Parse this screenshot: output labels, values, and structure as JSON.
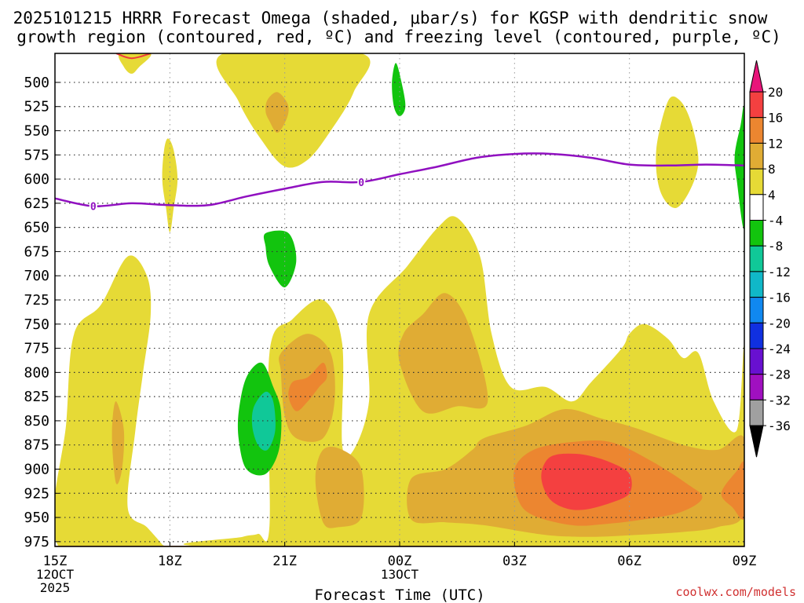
{
  "chart_data": {
    "type": "heatmap",
    "title_line1": "2025101215 HRRR Forecast Omega (shaded, μbar/s) for KGSP with dendritic snow",
    "title_line2": "growth region (contoured, red, ºC) and freezing level (contoured, purple, ºC)",
    "xlabel": "Forecast Time (UTC)",
    "watermark": "coolwx.com/models",
    "x_range_hours": [
      0,
      18
    ],
    "y_range_hpa": [
      470,
      980
    ],
    "x_ticks": [
      {
        "hour": 0,
        "label": "15Z"
      },
      {
        "hour": 3,
        "label": "18Z"
      },
      {
        "hour": 6,
        "label": "21Z"
      },
      {
        "hour": 9,
        "label": "00Z"
      },
      {
        "hour": 12,
        "label": "03Z"
      },
      {
        "hour": 15,
        "label": "06Z"
      },
      {
        "hour": 18,
        "label": "09Z"
      }
    ],
    "date_labels": [
      {
        "hour": 0,
        "lines": [
          "12OCT",
          "2025"
        ]
      },
      {
        "hour": 9,
        "lines": [
          "13OCT"
        ]
      }
    ],
    "y_ticks": [
      500,
      525,
      550,
      575,
      600,
      625,
      650,
      675,
      700,
      725,
      750,
      775,
      800,
      825,
      850,
      875,
      900,
      925,
      950,
      975
    ],
    "colorbar": {
      "labels": [
        "20",
        "16",
        "12",
        "8",
        "4",
        "-4",
        "-8",
        "-12",
        "-16",
        "-20",
        "-24",
        "-28",
        "-32",
        "-36"
      ],
      "bands": [
        {
          "from": 20,
          "to": 16,
          "color": "#f44040"
        },
        {
          "from": 16,
          "to": 12,
          "color": "#ec8630"
        },
        {
          "from": 12,
          "to": 8,
          "color": "#e0ac34"
        },
        {
          "from": 8,
          "to": 4,
          "color": "#e6da36"
        },
        {
          "from": 4,
          "to": -4,
          "color": "#ffffff"
        },
        {
          "from": -4,
          "to": -8,
          "color": "#12c40e"
        },
        {
          "from": -8,
          "to": -12,
          "color": "#10c898"
        },
        {
          "from": -12,
          "to": -16,
          "color": "#10b8c8"
        },
        {
          "from": -16,
          "to": -20,
          "color": "#1088f0"
        },
        {
          "from": -20,
          "to": -24,
          "color": "#1030e0"
        },
        {
          "from": -24,
          "to": -28,
          "color": "#6810d0"
        },
        {
          "from": -28,
          "to": -32,
          "color": "#a010c0"
        },
        {
          "from": -32,
          "to": -36,
          "color": "#a0a0a0"
        }
      ],
      "top_arrow_color": "#e8157a",
      "bottom_arrow_color": "#000000"
    },
    "freezing_level": {
      "label": "0",
      "color": "#9010c0",
      "points": [
        [
          0,
          620
        ],
        [
          1,
          628
        ],
        [
          2,
          625
        ],
        [
          3,
          627
        ],
        [
          4,
          627
        ],
        [
          5,
          618
        ],
        [
          6,
          610
        ],
        [
          7,
          603
        ],
        [
          8,
          603
        ],
        [
          9,
          595
        ],
        [
          10,
          587
        ],
        [
          11,
          578
        ],
        [
          12,
          574
        ],
        [
          13,
          574
        ],
        [
          14,
          578
        ],
        [
          15,
          585
        ],
        [
          16,
          586
        ],
        [
          17,
          585
        ],
        [
          18,
          586
        ]
      ],
      "label_points": [
        [
          1,
          628
        ],
        [
          8,
          603
        ]
      ]
    },
    "dendritic_contour": {
      "color": "#f03c3c",
      "points": [
        [
          1.6,
          470
        ],
        [
          2.0,
          475
        ],
        [
          2.5,
          470
        ]
      ]
    },
    "ground": {
      "pressure_hpa": 980,
      "color": "#b0602a"
    },
    "omega_regions": [
      {
        "name": "upper-left-small",
        "value": 5,
        "points": [
          [
            1.7,
            470
          ],
          [
            2.5,
            470
          ],
          [
            2.2,
            484
          ],
          [
            2.0,
            491
          ],
          [
            1.8,
            484
          ]
        ]
      },
      {
        "name": "upper-center-plume",
        "value": 5,
        "points": [
          [
            4.4,
            470
          ],
          [
            8.0,
            470
          ],
          [
            7.8,
            510
          ],
          [
            7.2,
            550
          ],
          [
            6.6,
            580
          ],
          [
            6.0,
            587
          ],
          [
            5.4,
            560
          ],
          [
            4.8,
            520
          ]
        ]
      },
      {
        "name": "upper-center-core",
        "value": 9,
        "points": [
          [
            5.8,
            510
          ],
          [
            6.05,
            520
          ],
          [
            6.1,
            530
          ],
          [
            6.0,
            542
          ],
          [
            5.8,
            552
          ],
          [
            5.6,
            540
          ],
          [
            5.5,
            530
          ],
          [
            5.55,
            518
          ]
        ]
      },
      {
        "name": "thin-18z-column",
        "value": 5,
        "points": [
          [
            2.95,
            558
          ],
          [
            3.1,
            570
          ],
          [
            3.2,
            600
          ],
          [
            3.1,
            630
          ],
          [
            3.0,
            655
          ],
          [
            2.9,
            630
          ],
          [
            2.8,
            600
          ],
          [
            2.85,
            570
          ]
        ]
      },
      {
        "name": "green-500",
        "value": -5,
        "points": [
          [
            8.9,
            480
          ],
          [
            9.05,
            500
          ],
          [
            9.15,
            525
          ],
          [
            9.0,
            535
          ],
          [
            8.85,
            525
          ],
          [
            8.8,
            500
          ]
        ]
      },
      {
        "name": "green-680",
        "value": -5,
        "points": [
          [
            5.5,
            656
          ],
          [
            6.1,
            656
          ],
          [
            6.3,
            685
          ],
          [
            6.0,
            712
          ],
          [
            5.6,
            690
          ],
          [
            5.5,
            670
          ]
        ]
      },
      {
        "name": "right-upper-yellow",
        "value": 5,
        "points": [
          [
            16.0,
            520
          ],
          [
            16.3,
            518
          ],
          [
            16.6,
            540
          ],
          [
            16.8,
            580
          ],
          [
            16.6,
            610
          ],
          [
            16.2,
            630
          ],
          [
            15.8,
            612
          ],
          [
            15.7,
            570
          ]
        ]
      },
      {
        "name": "right-edge-green",
        "value": -5,
        "points": [
          [
            17.9,
            545
          ],
          [
            18.0,
            530
          ],
          [
            18.0,
            650
          ],
          [
            17.8,
            600
          ],
          [
            17.75,
            575
          ]
        ]
      },
      {
        "name": "lower-yellow-left",
        "value": 5,
        "points": [
          [
            0.1,
            980
          ],
          [
            0.3,
            850
          ],
          [
            0.5,
            760
          ],
          [
            1.2,
            730
          ],
          [
            1.9,
            680
          ],
          [
            2.4,
            700
          ],
          [
            2.5,
            740
          ],
          [
            2.3,
            800
          ],
          [
            2.1,
            860
          ],
          [
            1.9,
            940
          ],
          [
            2.4,
            960
          ],
          [
            2.8,
            978
          ],
          [
            2.8,
            980
          ]
        ]
      },
      {
        "name": "lower-yellow-main",
        "value": 5,
        "points": [
          [
            4.2,
            980
          ],
          [
            4.9,
            970
          ],
          [
            5.3,
            967
          ],
          [
            5.6,
            959
          ],
          [
            5.6,
            780
          ],
          [
            6.2,
            745
          ],
          [
            7.0,
            725
          ],
          [
            7.5,
            770
          ],
          [
            7.5,
            875
          ],
          [
            7.8,
            880
          ],
          [
            8.2,
            830
          ],
          [
            8.2,
            740
          ],
          [
            9.2,
            690
          ],
          [
            10.0,
            650
          ],
          [
            10.5,
            640
          ],
          [
            11.1,
            680
          ],
          [
            11.4,
            760
          ],
          [
            11.9,
            815
          ],
          [
            12.8,
            815
          ],
          [
            13.5,
            830
          ],
          [
            14.0,
            810
          ],
          [
            14.8,
            775
          ],
          [
            15.0,
            760
          ],
          [
            15.4,
            750
          ],
          [
            16.0,
            765
          ],
          [
            16.4,
            785
          ],
          [
            16.8,
            780
          ],
          [
            17.2,
            830
          ],
          [
            17.8,
            860
          ],
          [
            18.0,
            775
          ],
          [
            18.0,
            980
          ]
        ]
      },
      {
        "name": "core-left-small",
        "value": 9,
        "points": [
          [
            1.6,
            830
          ],
          [
            1.8,
            860
          ],
          [
            1.75,
            900
          ],
          [
            1.6,
            915
          ],
          [
            1.5,
            880
          ],
          [
            1.5,
            850
          ]
        ]
      },
      {
        "name": "core-21z",
        "value": 9,
        "points": [
          [
            5.9,
            780
          ],
          [
            6.6,
            760
          ],
          [
            7.2,
            780
          ],
          [
            7.3,
            830
          ],
          [
            7.0,
            868
          ],
          [
            6.3,
            868
          ],
          [
            6.0,
            845
          ],
          [
            5.9,
            800
          ]
        ]
      },
      {
        "name": "core-21z-inner",
        "value": 13,
        "points": [
          [
            6.2,
            810
          ],
          [
            6.6,
            805
          ],
          [
            7.0,
            790
          ],
          [
            7.1,
            805
          ],
          [
            6.9,
            815
          ],
          [
            6.6,
            830
          ],
          [
            6.3,
            840
          ],
          [
            6.1,
            825
          ]
        ]
      },
      {
        "name": "core-00z",
        "value": 9,
        "points": [
          [
            9.1,
            760
          ],
          [
            9.6,
            740
          ],
          [
            10.2,
            718
          ],
          [
            10.8,
            750
          ],
          [
            11.3,
            830
          ],
          [
            10.5,
            835
          ],
          [
            9.6,
            840
          ],
          [
            9.0,
            790
          ]
        ]
      },
      {
        "name": "core-left-lower",
        "value": 9,
        "points": [
          [
            7.0,
            880
          ],
          [
            7.5,
            880
          ],
          [
            8.0,
            900
          ],
          [
            8.0,
            950
          ],
          [
            7.4,
            960
          ],
          [
            7.0,
            955
          ],
          [
            6.8,
            910
          ]
        ]
      },
      {
        "name": "band-lower",
        "value": 9,
        "points": [
          [
            9.3,
            952
          ],
          [
            9.3,
            910
          ],
          [
            10.2,
            900
          ],
          [
            10.9,
            880
          ],
          [
            11.2,
            868
          ],
          [
            12.3,
            855
          ],
          [
            13.3,
            838
          ],
          [
            14.3,
            848
          ],
          [
            15.2,
            858
          ],
          [
            16.4,
            875
          ],
          [
            17.3,
            880
          ],
          [
            18.0,
            868
          ],
          [
            18.0,
            945
          ],
          [
            17.3,
            960
          ],
          [
            16.4,
            965
          ],
          [
            15.2,
            968
          ],
          [
            14.0,
            970
          ],
          [
            12.8,
            968
          ],
          [
            11.2,
            958
          ],
          [
            10.2,
            955
          ]
        ]
      },
      {
        "name": "band-core",
        "value": 13,
        "points": [
          [
            12.0,
            900
          ],
          [
            12.5,
            880
          ],
          [
            13.5,
            872
          ],
          [
            14.5,
            872
          ],
          [
            15.5,
            890
          ],
          [
            16.5,
            915
          ],
          [
            16.9,
            930
          ],
          [
            16.3,
            945
          ],
          [
            15.2,
            953
          ],
          [
            14.3,
            957
          ],
          [
            13.5,
            958
          ],
          [
            12.5,
            948
          ],
          [
            12.1,
            932
          ]
        ]
      },
      {
        "name": "band-max",
        "value": 17,
        "points": [
          [
            12.8,
            893
          ],
          [
            13.1,
            885
          ],
          [
            13.8,
            885
          ],
          [
            14.5,
            893
          ],
          [
            15.0,
            905
          ],
          [
            15.0,
            925
          ],
          [
            14.5,
            935
          ],
          [
            13.8,
            942
          ],
          [
            13.3,
            940
          ],
          [
            12.9,
            930
          ],
          [
            12.7,
            910
          ]
        ]
      },
      {
        "name": "right-edge-orange",
        "value": 13,
        "points": [
          [
            17.4,
            925
          ],
          [
            17.8,
            902
          ],
          [
            18.0,
            895
          ],
          [
            18.0,
            950
          ],
          [
            17.7,
            940
          ]
        ]
      },
      {
        "name": "green-blob",
        "value": -5,
        "points": [
          [
            4.8,
            840
          ],
          [
            5.0,
            805
          ],
          [
            5.4,
            790
          ],
          [
            5.7,
            815
          ],
          [
            5.9,
            840
          ],
          [
            5.85,
            880
          ],
          [
            5.5,
            905
          ],
          [
            5.0,
            900
          ],
          [
            4.8,
            870
          ]
        ]
      },
      {
        "name": "teal-blob",
        "value": -9,
        "points": [
          [
            5.2,
            835
          ],
          [
            5.5,
            820
          ],
          [
            5.7,
            830
          ],
          [
            5.75,
            860
          ],
          [
            5.55,
            880
          ],
          [
            5.3,
            875
          ],
          [
            5.15,
            855
          ]
        ]
      }
    ]
  }
}
